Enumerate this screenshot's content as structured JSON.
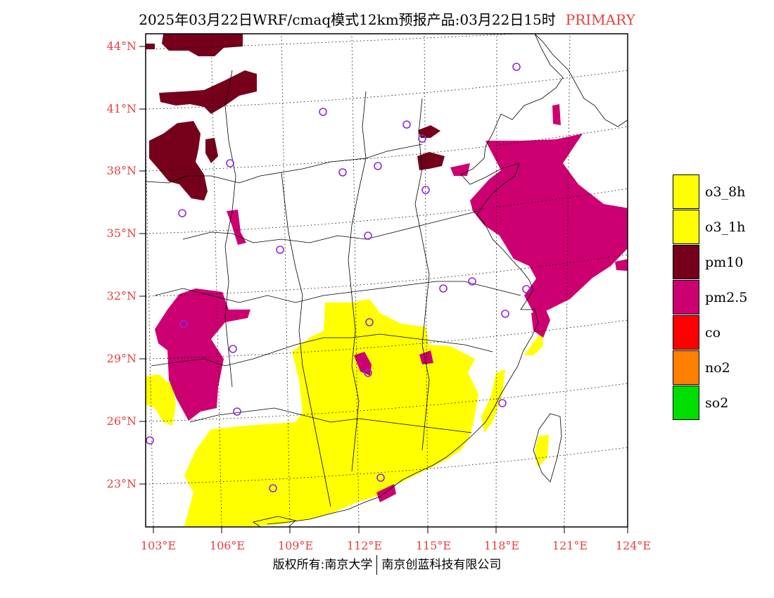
{
  "title": {
    "main": "2025年03月22日WRF/cmaq模式12km预报产品:03月22日15时",
    "tag": "PRIMARY"
  },
  "colors": {
    "label": "#e8403c",
    "o3": "#ffff00",
    "pm10": "#76001c",
    "pm25": "#cc0070",
    "co": "#ff0000",
    "no2": "#ff7f00",
    "so2": "#00dd00",
    "station": "#8a2be2"
  },
  "lat_labels": [
    "44°N",
    "41°N",
    "38°N",
    "35°N",
    "32°N",
    "29°N",
    "26°N",
    "23°N"
  ],
  "lon_labels": [
    "103°E",
    "106°E",
    "109°E",
    "112°E",
    "115°E",
    "118°E",
    "121°E",
    "124°E"
  ],
  "legend": [
    {
      "label": "o3_8h",
      "color": "#ffff00"
    },
    {
      "label": "o3_1h",
      "color": "#ffff00"
    },
    {
      "label": "pm10",
      "color": "#76001c"
    },
    {
      "label": "pm2.5",
      "color": "#cc0070"
    },
    {
      "label": "co",
      "color": "#ff0000"
    },
    {
      "label": "no2",
      "color": "#ff7f00"
    },
    {
      "label": "so2",
      "color": "#00dd00"
    }
  ],
  "footer": {
    "left": "版权所有:南京大学",
    "right": "南京创蓝科技有限公司"
  }
}
